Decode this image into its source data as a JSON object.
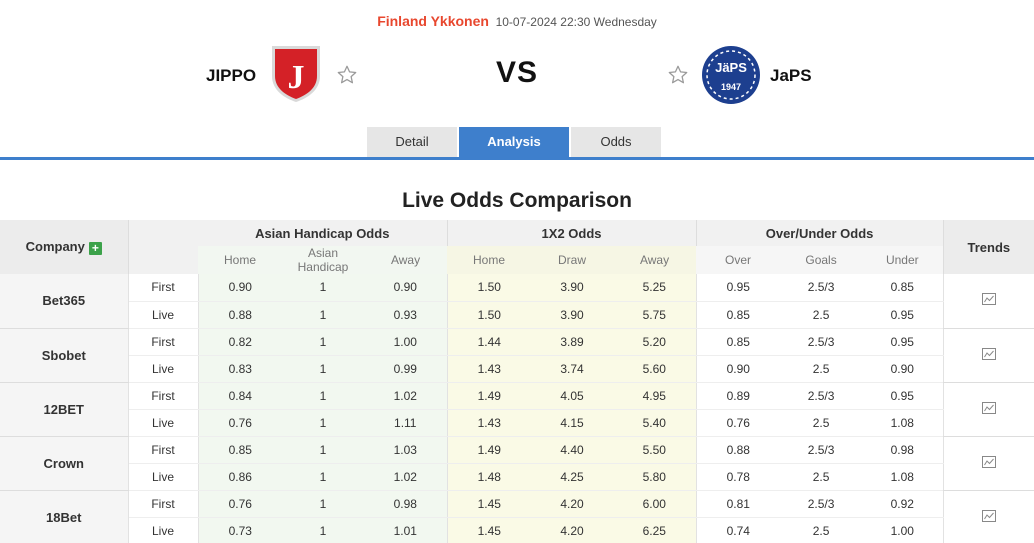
{
  "match": {
    "league": "Finland Ykkonen",
    "datetime": "10-07-2024 22:30 Wednesday",
    "home": "JIPPO",
    "away": "JaPS",
    "vs": "VS",
    "home_logo_letter": "J",
    "away_logo_text": "JäPS",
    "away_logo_year": "1947"
  },
  "tabs": [
    {
      "label": "Detail"
    },
    {
      "label": "Analysis"
    },
    {
      "label": "Odds"
    }
  ],
  "section_title": "Live Odds Comparison",
  "table": {
    "company_header": "Company",
    "trends_header": "Trends",
    "groups": {
      "ah": "Asian Handicap Odds",
      "x12": "1X2 Odds",
      "ou": "Over/Under Odds"
    },
    "subheaders": {
      "ah": [
        "Home",
        "Asian Handicap",
        "Away"
      ],
      "x12": [
        "Home",
        "Draw",
        "Away"
      ],
      "ou": [
        "Over",
        "Goals",
        "Under"
      ]
    },
    "companies": [
      {
        "name": "Bet365",
        "rows": [
          {
            "type": "First",
            "ah": [
              "0.90",
              "1",
              "0.90"
            ],
            "x12": [
              "1.50",
              "3.90",
              "5.25"
            ],
            "ou": [
              "0.95",
              "2.5/3",
              "0.85"
            ]
          },
          {
            "type": "Live",
            "ah": [
              "0.88",
              "1",
              "0.93"
            ],
            "x12": [
              "1.50",
              "3.90",
              "5.75"
            ],
            "ou": [
              "0.85",
              "2.5",
              "0.95"
            ]
          }
        ]
      },
      {
        "name": "Sbobet",
        "rows": [
          {
            "type": "First",
            "ah": [
              "0.82",
              "1",
              "1.00"
            ],
            "x12": [
              "1.44",
              "3.89",
              "5.20"
            ],
            "ou": [
              "0.85",
              "2.5/3",
              "0.95"
            ]
          },
          {
            "type": "Live",
            "ah": [
              "0.83",
              "1",
              "0.99"
            ],
            "x12": [
              "1.43",
              "3.74",
              "5.60"
            ],
            "ou": [
              "0.90",
              "2.5",
              "0.90"
            ]
          }
        ]
      },
      {
        "name": "12BET",
        "rows": [
          {
            "type": "First",
            "ah": [
              "0.84",
              "1",
              "1.02"
            ],
            "x12": [
              "1.49",
              "4.05",
              "4.95"
            ],
            "ou": [
              "0.89",
              "2.5/3",
              "0.95"
            ]
          },
          {
            "type": "Live",
            "ah": [
              "0.76",
              "1",
              "1.11"
            ],
            "x12": [
              "1.43",
              "4.15",
              "5.40"
            ],
            "ou": [
              "0.76",
              "2.5",
              "1.08"
            ]
          }
        ]
      },
      {
        "name": "Crown",
        "rows": [
          {
            "type": "First",
            "ah": [
              "0.85",
              "1",
              "1.03"
            ],
            "x12": [
              "1.49",
              "4.40",
              "5.50"
            ],
            "ou": [
              "0.88",
              "2.5/3",
              "0.98"
            ]
          },
          {
            "type": "Live",
            "ah": [
              "0.86",
              "1",
              "1.02"
            ],
            "x12": [
              "1.48",
              "4.25",
              "5.80"
            ],
            "ou": [
              "0.78",
              "2.5",
              "1.08"
            ]
          }
        ]
      },
      {
        "name": "18Bet",
        "rows": [
          {
            "type": "First",
            "ah": [
              "0.76",
              "1",
              "0.98"
            ],
            "x12": [
              "1.45",
              "4.20",
              "6.00"
            ],
            "ou": [
              "0.81",
              "2.5/3",
              "0.92"
            ]
          },
          {
            "type": "Live",
            "ah": [
              "0.73",
              "1",
              "1.01"
            ],
            "x12": [
              "1.45",
              "4.20",
              "6.25"
            ],
            "ou": [
              "0.74",
              "2.5",
              "1.00"
            ]
          }
        ]
      }
    ]
  },
  "colors": {
    "accent": "#3e7fcc",
    "league": "#e8472e",
    "home_red": "#d42127",
    "away_blue": "#1d3f8f",
    "plus_green": "#3ca24a"
  },
  "icons": {
    "favorite": "star-outline-icon",
    "add": "plus-icon",
    "trend": "line-chart-icon"
  }
}
